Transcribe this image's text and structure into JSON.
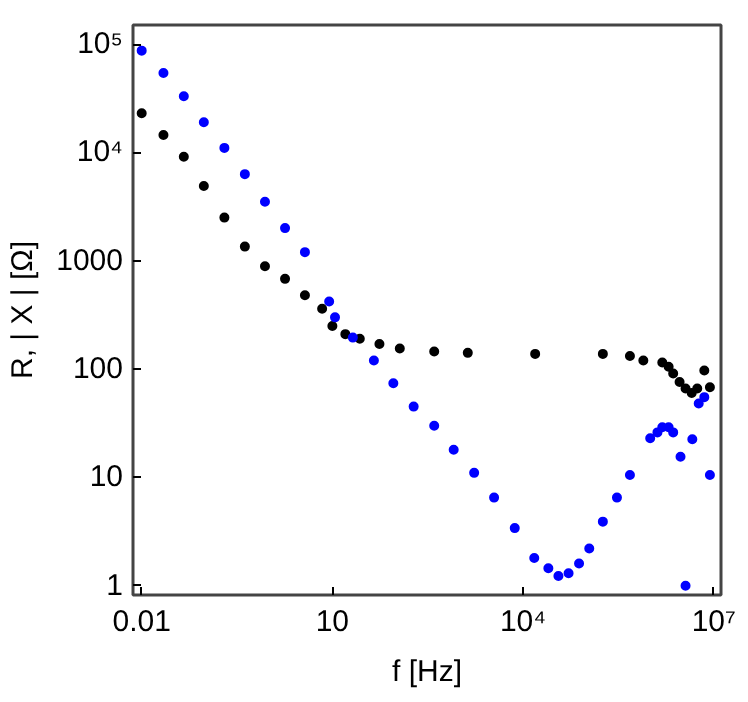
{
  "chart_data": {
    "type": "scatter",
    "xlabel": "f [Hz]",
    "ylabel": "R, | X | [Ω]",
    "log": "xy",
    "grid": false,
    "marker": "circle",
    "xlim": [
      0.0073,
      13000000
    ],
    "ylim": [
      0.82,
      150000
    ],
    "xticks": [
      0.01,
      10,
      {
        "value": 10000,
        "label": "10⁴"
      },
      {
        "value": 10000000,
        "label": "10⁷"
      }
    ],
    "yticks": [
      1,
      10,
      100,
      1000,
      {
        "value": 10000,
        "label": "10⁴"
      },
      {
        "value": 100000,
        "label": "10⁵"
      }
    ],
    "series": [
      {
        "color": "#000000",
        "x": [
          0.01,
          0.022,
          0.046,
          0.095,
          0.2,
          0.42,
          0.87,
          1.8,
          3.7,
          6.9,
          10,
          16,
          27,
          55,
          115,
          400,
          1350,
          15500,
          180000,
          480000,
          780000,
          1550000,
          1950000,
          2300000,
          2900000,
          3600000,
          4500000,
          5500000,
          7100000,
          8700000
        ],
        "values": [
          23000,
          14500,
          9100,
          4900,
          2500,
          1350,
          890,
          680,
          480,
          360,
          250,
          210,
          190,
          170,
          155,
          145,
          141,
          138,
          138,
          132,
          120,
          115,
          105,
          91,
          76,
          66,
          60,
          66,
          97,
          68
        ]
      },
      {
        "color": "#0000ff",
        "x": [
          0.01,
          0.022,
          0.046,
          0.095,
          0.2,
          0.42,
          0.87,
          1.8,
          3.7,
          8.9,
          11,
          21,
          45,
          91,
          190,
          400,
          810,
          1700,
          3500,
          7400,
          15000,
          25000,
          36000,
          52000,
          76000,
          110000,
          180000,
          300000,
          480000,
          1000000,
          1300000,
          1550000,
          1950000,
          2300000,
          3000000,
          3600000,
          4600000,
          5800000,
          7100000,
          8700000
        ],
        "values": [
          87000,
          54000,
          33000,
          19000,
          11000,
          6300,
          3500,
          2000,
          1200,
          420,
          300,
          195,
          120,
          74,
          45,
          30,
          18,
          11,
          6.5,
          3.4,
          1.8,
          1.45,
          1.23,
          1.3,
          1.6,
          2.2,
          3.9,
          6.5,
          10.5,
          23,
          26,
          29,
          29,
          26,
          15.5,
          1.0,
          22.5,
          48,
          55,
          10.5
        ]
      }
    ]
  }
}
